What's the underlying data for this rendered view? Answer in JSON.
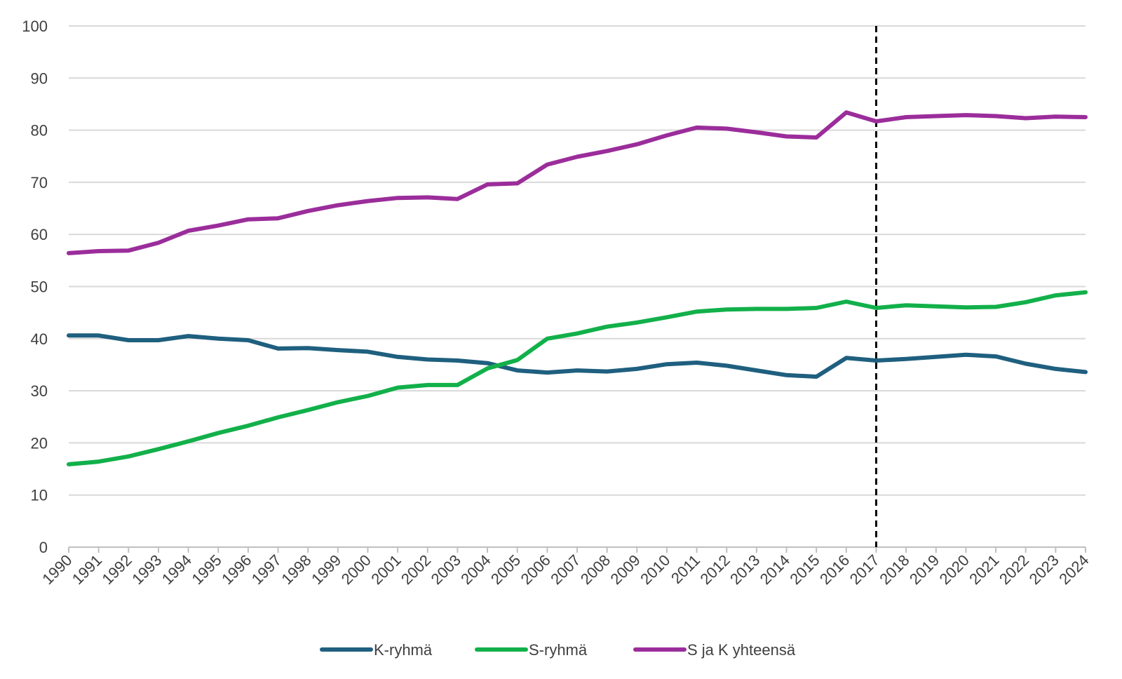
{
  "chart_data": {
    "type": "line",
    "title": "",
    "xlabel": "",
    "ylabel": "",
    "ylim": [
      0,
      100
    ],
    "yticks": [
      "0",
      "10",
      "20",
      "30",
      "40",
      "50",
      "60",
      "70",
      "80",
      "90",
      "100"
    ],
    "grid": true,
    "legend_position": "bottom",
    "vertical_marker": "2017",
    "x": [
      "1990",
      "1991",
      "1992",
      "1993",
      "1994",
      "1995",
      "1996",
      "1997",
      "1998",
      "1999",
      "2000",
      "2001",
      "2002",
      "2003",
      "2004",
      "2005",
      "2006",
      "2007",
      "2008",
      "2009",
      "2010",
      "2011",
      "2012",
      "2013",
      "2014",
      "2015",
      "2016",
      "2017",
      "2018",
      "2019",
      "2020",
      "2021",
      "2022",
      "2023",
      "2024"
    ],
    "series": [
      {
        "name": "K-ryhmä",
        "color": "#1f5f7f",
        "values": [
          40.6,
          40.6,
          39.7,
          39.7,
          40.5,
          40.0,
          39.7,
          38.1,
          38.2,
          37.8,
          37.5,
          36.5,
          36.0,
          35.8,
          35.3,
          33.9,
          33.5,
          33.9,
          33.7,
          34.2,
          35.1,
          35.4,
          34.8,
          33.9,
          33.0,
          32.7,
          36.3,
          35.8,
          36.1,
          36.5,
          36.9,
          36.6,
          35.2,
          34.2,
          33.6
        ]
      },
      {
        "name": "S-ryhmä",
        "color": "#12b04a",
        "values": [
          15.9,
          16.4,
          17.4,
          18.8,
          20.3,
          21.9,
          23.3,
          24.9,
          26.3,
          27.8,
          29.0,
          30.6,
          31.1,
          31.1,
          34.3,
          35.9,
          40.0,
          41.0,
          42.3,
          43.1,
          44.1,
          45.2,
          45.6,
          45.7,
          45.7,
          45.9,
          47.1,
          45.9,
          46.4,
          46.2,
          46.0,
          46.1,
          47.0,
          48.3,
          48.9
        ]
      },
      {
        "name": "S ja K yhteensä",
        "color": "#9b2d9b",
        "values": [
          56.4,
          56.8,
          56.9,
          58.4,
          60.7,
          61.7,
          62.9,
          63.1,
          64.5,
          65.6,
          66.4,
          67.0,
          67.1,
          66.8,
          69.6,
          69.8,
          73.4,
          74.9,
          76.0,
          77.3,
          79.0,
          80.5,
          80.3,
          79.6,
          78.8,
          78.6,
          83.4,
          81.7,
          82.5,
          82.7,
          82.9,
          82.7,
          82.3,
          82.6,
          82.5
        ]
      }
    ]
  }
}
